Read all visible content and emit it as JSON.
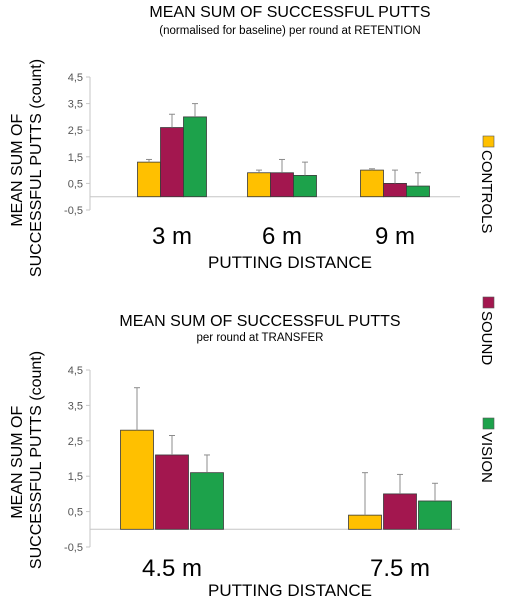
{
  "colors": {
    "controls": "#FFC000",
    "sound": "#A3174F",
    "vision": "#1DA24B",
    "error": "#8C8C8C",
    "axis": "#C6C6C6"
  },
  "legend": [
    "CONTROLS",
    "SOUND",
    "VISION"
  ],
  "chart_data": [
    {
      "type": "bar",
      "title": "MEAN SUM OF SUCCESSFUL PUTTS",
      "subtitle": "(normalised for baseline) per round at RETENTION",
      "xlabel": "PUTTING DISTANCE",
      "ylabel": [
        "MEAN SUM OF",
        "SUCCESSFUL PUTTS (count)"
      ],
      "ylim": [
        -0.5,
        4.5
      ],
      "yticks": [
        "-0,5",
        "0,5",
        "1,5",
        "2,5",
        "3,5",
        "4,5"
      ],
      "ytick_values": [
        -0.5,
        0.5,
        1.5,
        2.5,
        3.5,
        4.5
      ],
      "categories": [
        "3 m",
        "6 m",
        "9 m"
      ],
      "series": [
        {
          "name": "CONTROLS",
          "values": [
            1.3,
            0.9,
            1.0
          ],
          "errors": [
            0.1,
            0.1,
            0.05
          ]
        },
        {
          "name": "SOUND",
          "values": [
            2.6,
            0.9,
            0.5
          ],
          "errors": [
            0.5,
            0.5,
            0.5
          ]
        },
        {
          "name": "VISION",
          "values": [
            3.0,
            0.8,
            0.4
          ],
          "errors": [
            0.5,
            0.5,
            0.5
          ]
        }
      ]
    },
    {
      "type": "bar",
      "title": "MEAN SUM OF SUCCESSFUL PUTTS",
      "subtitle": "per round at TRANSFER",
      "xlabel": "PUTTING DISTANCE",
      "ylabel": [
        "MEAN SUM OF",
        "SUCCESSFUL PUTTS (count)"
      ],
      "ylim": [
        -0.5,
        4.5
      ],
      "yticks": [
        "-0,5",
        "0,5",
        "1,5",
        "2,5",
        "3,5",
        "4,5"
      ],
      "ytick_values": [
        -0.5,
        0.5,
        1.5,
        2.5,
        3.5,
        4.5
      ],
      "categories": [
        "4.5 m",
        "7.5 m"
      ],
      "series": [
        {
          "name": "CONTROLS",
          "values": [
            2.8,
            0.4
          ],
          "errors": [
            1.2,
            1.2
          ]
        },
        {
          "name": "SOUND",
          "values": [
            2.1,
            1.0
          ],
          "errors": [
            0.55,
            0.55
          ]
        },
        {
          "name": "VISION",
          "values": [
            1.6,
            0.8
          ],
          "errors": [
            0.5,
            0.5
          ]
        }
      ]
    }
  ]
}
